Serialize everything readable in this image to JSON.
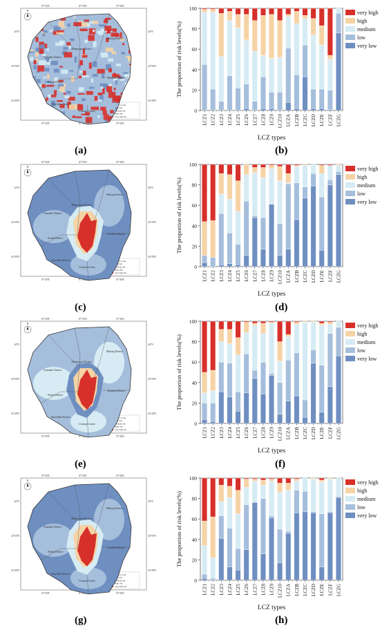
{
  "panel_labels": [
    "(a)",
    "(b)",
    "(c)",
    "(d)",
    "(e)",
    "(f)",
    "(g)",
    "(h)"
  ],
  "colors": {
    "very_high": "#d7302a",
    "high": "#f6d3a5",
    "medium": "#d6ebf3",
    "low": "#a5bedc",
    "very_low": "#6f8fc1"
  },
  "map_text": {
    "districts": [
      "Midong District",
      "Toutunhe District",
      "Shuimogou District",
      "Tianshan District",
      "Xinshi District",
      "Shayibake District",
      "Urumqi County"
    ],
    "lon_ticks": [
      "87°20'E",
      "87°30'E",
      "87°40'E"
    ],
    "lat_ticks": [
      "44°N",
      "43°50'N",
      "43°40'N"
    ],
    "legend_risk": [
      "Very low risk",
      "Low risk",
      "Medium risk",
      "High risk",
      "Very high risk"
    ],
    "north": "N"
  },
  "chart_data": [
    {
      "type": "bar",
      "stacked": true,
      "panel": "(b)",
      "categories": [
        "LCZ1",
        "LCZ2",
        "LCZ3",
        "LCZ4",
        "LCZ5",
        "LCZ6",
        "LCZ7",
        "LCZ8",
        "LCZ9",
        "LCZ10",
        "LCZA",
        "LCZB",
        "LCZC",
        "LCZD",
        "LCZE",
        "LCZF",
        "LCZG"
      ],
      "xlabel": "LCZ types",
      "ylabel": "The proportion of risk levels(%)",
      "ylim": [
        0,
        100
      ],
      "yticks": [
        0,
        20,
        40,
        60,
        80,
        100
      ],
      "legend": [
        "very high",
        "high",
        "medium",
        "low",
        "very low"
      ],
      "legend_position": "top-right",
      "series": [
        {
          "name": "very low",
          "values": [
            0,
            0,
            0,
            0,
            0,
            2,
            0,
            2,
            2,
            0,
            8,
            2,
            33,
            2,
            2,
            1,
            76
          ]
        },
        {
          "name": "low",
          "values": [
            45,
            21,
            9,
            34,
            22,
            24,
            9,
            31,
            16,
            18,
            53,
            33,
            31,
            19,
            19,
            19,
            19
          ]
        },
        {
          "name": "medium",
          "values": [
            51,
            75,
            44,
            54,
            59,
            43,
            49,
            21,
            33,
            34,
            31,
            50,
            26,
            53,
            43,
            30,
            5
          ]
        },
        {
          "name": "high",
          "values": [
            3,
            3,
            42,
            9,
            13,
            25,
            30,
            39,
            43,
            36,
            2,
            12,
            3,
            16,
            19,
            4,
            0
          ]
        },
        {
          "name": "very high",
          "values": [
            1,
            1,
            5,
            3,
            6,
            6,
            12,
            7,
            6,
            12,
            6,
            3,
            7,
            10,
            17,
            46,
            0
          ]
        }
      ]
    },
    {
      "type": "bar",
      "stacked": true,
      "panel": "(d)",
      "categories": [
        "LCZ1",
        "LCZ2",
        "LCZ3",
        "LCZ4",
        "LCZ5",
        "LCZ6",
        "LCZ7",
        "LCZ8",
        "LCZ9",
        "LCZ10",
        "LCZA",
        "LCZB",
        "LCZC",
        "LCZD",
        "LCZE",
        "LCZF",
        "LCZG"
      ],
      "xlabel": "LCZ types",
      "ylabel": "The proportion of risk levels(%)",
      "ylim": [
        0,
        100
      ],
      "yticks": [
        0,
        20,
        40,
        60,
        80,
        100
      ],
      "legend": [
        "very high",
        "high",
        "medium",
        "low",
        "very low"
      ],
      "legend_position": "top-right",
      "series": [
        {
          "name": "very low",
          "values": [
            4,
            0,
            2,
            3,
            2,
            11,
            48,
            17,
            61,
            11,
            17,
            46,
            67,
            79,
            16,
            80,
            90
          ]
        },
        {
          "name": "low",
          "values": [
            7,
            9,
            50,
            30,
            20,
            53,
            2,
            31,
            0,
            31,
            64,
            36,
            11,
            12,
            52,
            5,
            3
          ]
        },
        {
          "name": "medium",
          "values": [
            0,
            0,
            19,
            33,
            32,
            26,
            42,
            39,
            35,
            42,
            1,
            16,
            21,
            9,
            23,
            14,
            6
          ]
        },
        {
          "name": "high",
          "values": [
            33,
            36,
            20,
            24,
            30,
            10,
            5,
            10,
            3,
            14,
            9,
            1,
            1,
            0,
            8,
            0,
            1
          ]
        },
        {
          "name": "very high",
          "values": [
            56,
            55,
            9,
            10,
            16,
            0,
            3,
            3,
            1,
            2,
            9,
            1,
            0,
            0,
            1,
            1,
            0
          ]
        }
      ]
    },
    {
      "type": "bar",
      "stacked": true,
      "panel": "(f)",
      "categories": [
        "LCZ1",
        "LCZ2",
        "LCZ3",
        "LCZ4",
        "LCZ5",
        "LCZ6",
        "LCZ7",
        "LCZ8",
        "LCZ9",
        "LCZ10",
        "LCZA",
        "LCZB",
        "LCZC",
        "LCZD",
        "LCZE",
        "LCZF",
        "LCZG"
      ],
      "xlabel": "LCZ types",
      "ylabel": "The proportion of risk levels(%)",
      "ylim": [
        0,
        100
      ],
      "yticks": [
        0,
        20,
        40,
        60,
        80,
        100
      ],
      "legend": [
        "very high",
        "high",
        "medium",
        "low",
        "very low"
      ],
      "legend_position": "top-right",
      "series": [
        {
          "name": "very low",
          "values": [
            4,
            2,
            31,
            26,
            12,
            30,
            44,
            29,
            47,
            9,
            22,
            27,
            6,
            59,
            11,
            36,
            66
          ]
        },
        {
          "name": "low",
          "values": [
            16,
            18,
            29,
            33,
            19,
            38,
            8,
            31,
            2,
            31,
            40,
            42,
            17,
            13,
            46,
            52,
            28
          ]
        },
        {
          "name": "medium",
          "values": [
            10,
            12,
            20,
            19,
            36,
            21,
            44,
            28,
            49,
            21,
            23,
            28,
            76,
            27,
            39,
            9,
            6
          ]
        },
        {
          "name": "high",
          "values": [
            20,
            20,
            12,
            14,
            17,
            10,
            2,
            10,
            1,
            19,
            2,
            2,
            1,
            1,
            2,
            2,
            0
          ]
        },
        {
          "name": "very high",
          "values": [
            50,
            48,
            8,
            8,
            16,
            1,
            2,
            2,
            1,
            20,
            13,
            1,
            0,
            0,
            2,
            1,
            0
          ]
        }
      ]
    },
    {
      "type": "bar",
      "stacked": true,
      "panel": "(h)",
      "categories": [
        "LCZ1",
        "LCZ2",
        "LCZ3",
        "LCZ4",
        "LCZ5",
        "LCZ6",
        "LCZ7",
        "LCZ8",
        "LCZ9",
        "LCZ10",
        "LCZA",
        "LCZB",
        "LCZC",
        "LCZD",
        "LCZE",
        "LCZF",
        "LCZG"
      ],
      "xlabel": "LCZ types",
      "ylabel": "The proportion of risk levels(%)",
      "ylim": [
        0,
        100
      ],
      "yticks": [
        0,
        20,
        40,
        60,
        80,
        100
      ],
      "legend": [
        "very high",
        "high",
        "medium",
        "low",
        "very low"
      ],
      "legend_position": "top-right",
      "series": [
        {
          "name": "very low",
          "values": [
            2,
            0,
            41,
            13,
            10,
            30,
            76,
            26,
            61,
            17,
            46,
            66,
            67,
            66,
            13,
            66,
            81
          ]
        },
        {
          "name": "low",
          "values": [
            4,
            2,
            22,
            38,
            21,
            44,
            1,
            54,
            2,
            33,
            2,
            22,
            20,
            1,
            52,
            1,
            1
          ]
        },
        {
          "name": "medium",
          "values": [
            28,
            20,
            14,
            30,
            34,
            17,
            20,
            13,
            34,
            36,
            40,
            9,
            13,
            32,
            31,
            32,
            18
          ]
        },
        {
          "name": "high",
          "values": [
            24,
            40,
            16,
            11,
            23,
            8,
            2,
            5,
            2,
            9,
            7,
            2,
            0,
            1,
            2,
            1,
            0
          ]
        },
        {
          "name": "very high",
          "values": [
            42,
            38,
            7,
            8,
            12,
            1,
            1,
            2,
            1,
            5,
            5,
            1,
            0,
            0,
            2,
            0,
            0
          ]
        }
      ]
    }
  ]
}
